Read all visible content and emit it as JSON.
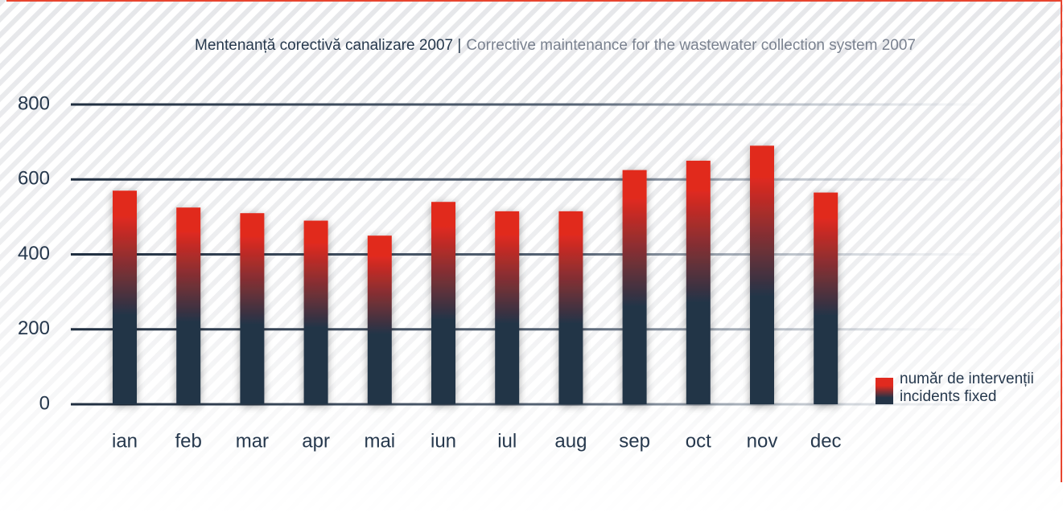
{
  "chart_data": {
    "type": "bar",
    "title": "Mentenanță corectivă canalizare 2007 |",
    "subtitle": "Corrective maintenance for the wastewater collection system 2007",
    "categories": [
      "ian",
      "feb",
      "mar",
      "apr",
      "mai",
      "iun",
      "iul",
      "aug",
      "sep",
      "oct",
      "nov",
      "dec"
    ],
    "series": [
      {
        "name": [
          "număr de intervenții",
          "incidents fixed"
        ],
        "color": [
          "#e12a1f",
          "#243447"
        ],
        "values": [
          570,
          525,
          510,
          490,
          450,
          540,
          515,
          515,
          625,
          650,
          690,
          565
        ]
      }
    ],
    "ylim": [
      0,
      800
    ],
    "yticks": [
      0,
      200,
      400,
      600,
      800
    ],
    "grid": true,
    "legend": "right"
  }
}
